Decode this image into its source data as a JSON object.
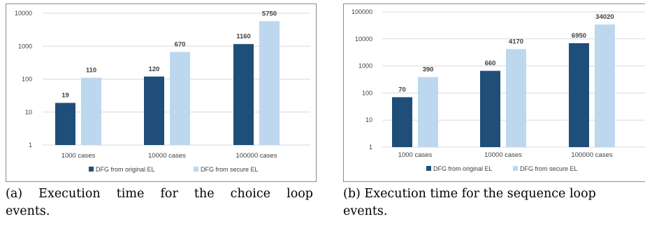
{
  "legend": {
    "original": "DFG from original EL",
    "secure": "DFG from secure EL"
  },
  "colors": {
    "original": "#1f4e79",
    "secure": "#bdd7ee",
    "grid": "#d9d9d9",
    "axis_text": "#404040"
  },
  "chart_data": [
    {
      "type": "bar",
      "y_scale": "log",
      "categories": [
        "1000 cases",
        "10000 cases",
        "100000 cases"
      ],
      "series": [
        {
          "name": "DFG from original EL",
          "values": [
            19,
            120,
            1160
          ]
        },
        {
          "name": "DFG from secure EL",
          "values": [
            110,
            670,
            5750
          ]
        }
      ],
      "yticks": [
        "1",
        "10",
        "100",
        "1000",
        "10000"
      ],
      "ylim": [
        1,
        10000
      ],
      "grid": true,
      "legend_position": "bottom",
      "caption_lines": [
        "(a) Execution time for the choice loop",
        "events."
      ]
    },
    {
      "type": "bar",
      "y_scale": "log",
      "categories": [
        "1000 cases",
        "10000 cases",
        "100000 cases"
      ],
      "series": [
        {
          "name": "DFG from original EL",
          "values": [
            70,
            660,
            6950
          ]
        },
        {
          "name": "DFG from secure EL",
          "values": [
            390,
            4170,
            34020
          ]
        }
      ],
      "yticks": [
        "1",
        "10",
        "100",
        "1000",
        "10000",
        "100000"
      ],
      "ylim": [
        1,
        100000
      ],
      "grid": true,
      "legend_position": "bottom",
      "caption_lines": [
        "(b) Execution time for the sequence loop",
        "events."
      ]
    }
  ]
}
